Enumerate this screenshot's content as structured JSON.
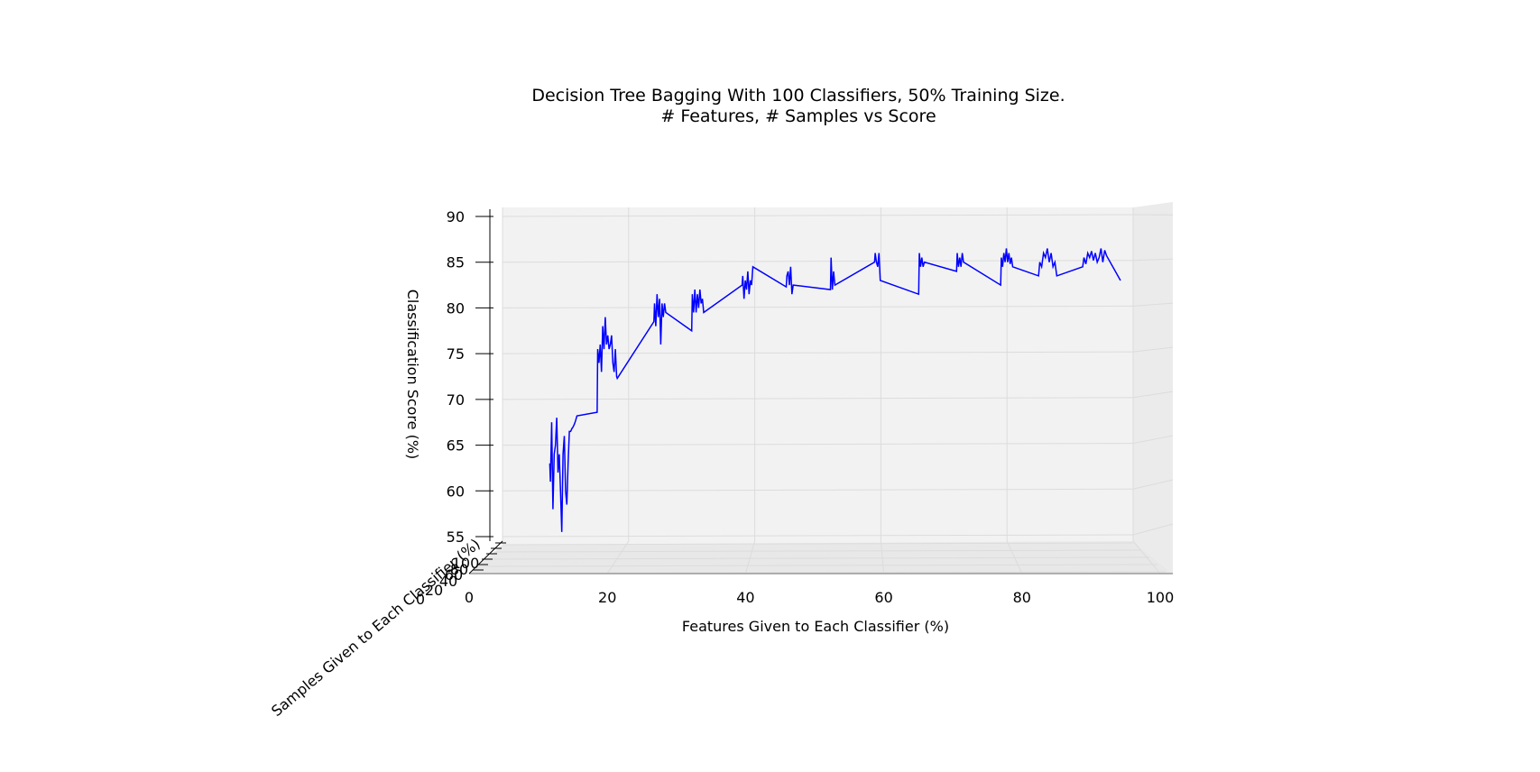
{
  "chart_data": {
    "type": "line",
    "projection": "3d",
    "title": [
      "Decision Tree Bagging With 100 Classifiers, 50% Training Size.",
      "# Features, # Samples vs Score"
    ],
    "xlabel": "Features Given to Each Classifier (%)",
    "ylabel": "Samples Given to Each Classifier (%)",
    "zlabel": "Classification Score (%)",
    "xlim": [
      0,
      100
    ],
    "zlim": [
      55,
      90
    ],
    "x_ticks": [
      "0",
      "20",
      "40",
      "60",
      "80",
      "100"
    ],
    "z_ticks": [
      "55",
      "60",
      "65",
      "70",
      "75",
      "80",
      "85",
      "90"
    ],
    "y_ticks": [
      "0",
      "20",
      "40",
      "60",
      "80",
      "100"
    ],
    "grid": true,
    "color": "#0000ff",
    "series": [
      {
        "x": [
          7.5,
          7.6,
          7.8,
          8.0,
          8.2,
          8.4,
          8.6,
          8.8,
          9.0,
          9.2,
          9.4,
          9.6,
          9.8,
          10.0,
          10.2,
          10.4,
          10.6,
          10.8,
          11.0,
          11.2,
          11.4,
          11.6,
          11.8,
          15.0,
          15.1,
          15.3,
          15.5,
          15.7,
          15.9,
          16.1,
          16.3,
          16.5,
          16.7,
          16.9,
          17.1,
          17.3,
          17.5,
          17.7,
          17.9,
          18.1,
          18.2,
          24.0,
          24.1,
          24.3,
          24.5,
          24.7,
          24.9,
          25.1,
          25.3,
          25.5,
          25.7,
          25.9,
          30.0,
          30.1,
          30.3,
          30.5,
          30.7,
          30.9,
          31.1,
          31.3,
          31.5,
          31.7,
          31.9,
          38.0,
          38.1,
          38.3,
          38.5,
          38.7,
          38.9,
          39.1,
          39.3,
          39.5,
          39.7,
          45.0,
          45.1,
          45.3,
          45.5,
          45.7,
          45.9,
          46.1,
          52.0,
          52.1,
          52.3,
          52.5,
          52.7,
          59.0,
          59.1,
          59.3,
          59.5,
          59.7,
          59.9,
          66.0,
          66.1,
          66.3,
          66.5,
          66.7,
          66.9,
          72.0,
          72.1,
          72.3,
          72.5,
          72.7,
          72.9,
          73.1,
          79.0,
          79.1,
          79.3,
          79.5,
          79.7,
          79.9,
          80.1,
          80.3,
          80.5,
          80.7,
          80.9,
          85.0,
          85.2,
          85.5,
          85.8,
          86.1,
          86.4,
          86.7,
          87.0,
          87.3,
          87.6,
          87.9,
          92.0,
          92.2,
          92.5,
          92.8,
          93.1,
          93.4,
          93.7,
          94.0,
          94.3,
          94.6,
          94.9,
          95.2,
          95.5,
          95.8,
          98.0
        ],
        "z": [
          63,
          61,
          67.5,
          58,
          64,
          65,
          68,
          62,
          64,
          60,
          55.5,
          64,
          66,
          60,
          58.5,
          63,
          66.5,
          66.5,
          66.8,
          67,
          67.3,
          67.7,
          68.2,
          68.6,
          75.5,
          74,
          76,
          73,
          78,
          75.5,
          79,
          76,
          77,
          75.5,
          76,
          77,
          74,
          73,
          75.5,
          72.5,
          72.3,
          78.5,
          80.5,
          78,
          81.5,
          79,
          81,
          76,
          80.5,
          79,
          80.5,
          79.5,
          77.5,
          81.5,
          79.5,
          82,
          79.5,
          81.5,
          80,
          82,
          80.5,
          81,
          79.5,
          82.5,
          83.5,
          81,
          83,
          82,
          84,
          81.5,
          83,
          82.5,
          84.5,
          82.3,
          83.5,
          84,
          82.5,
          84.5,
          81.5,
          82.5,
          82.0,
          85.5,
          82,
          84,
          82.5,
          85.0,
          86,
          85,
          84.5,
          86,
          83,
          81.5,
          86,
          84.5,
          85.5,
          84.5,
          85,
          84.0,
          86,
          84.5,
          85.5,
          84.5,
          86,
          85,
          82.5,
          85.5,
          84.5,
          86,
          85,
          86.5,
          85,
          86,
          84.8,
          85.5,
          84.5,
          83.5,
          85,
          84.5,
          86,
          85.5,
          86.5,
          85,
          86,
          84.5,
          85,
          83.5,
          84.5,
          85.5,
          84.8,
          86,
          85.5,
          86.2,
          85.2,
          86,
          85,
          85.5,
          86.5,
          85,
          86.3,
          85.7,
          83.0
        ]
      }
    ]
  }
}
